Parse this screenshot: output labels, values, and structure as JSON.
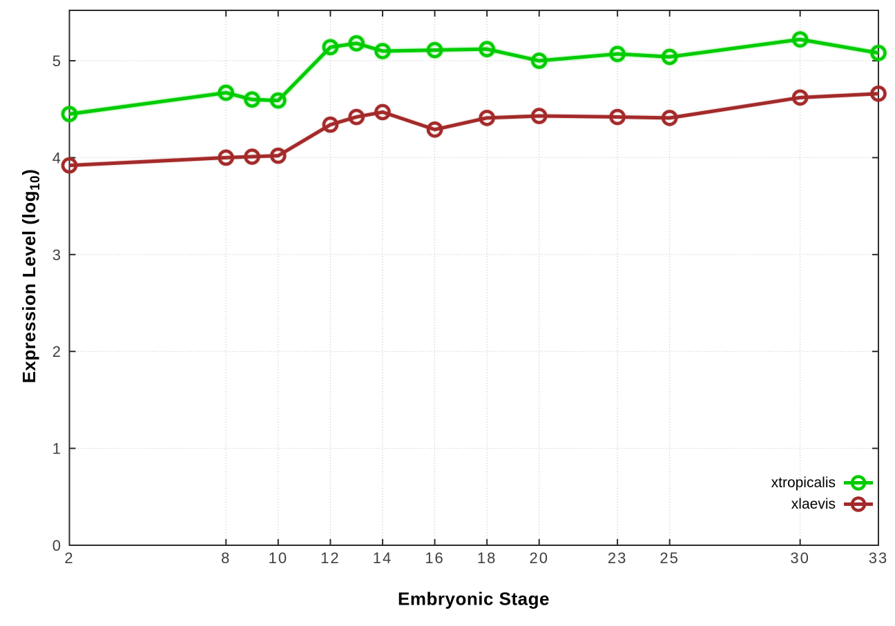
{
  "chart_data": {
    "type": "line",
    "title": "",
    "xlabel": "Embryonic Stage",
    "ylabel_prefix": "Expression Level (log",
    "ylabel_sub": "10",
    "ylabel_suffix": ")",
    "x": [
      2,
      8,
      9,
      10,
      12,
      13,
      14,
      16,
      18,
      20,
      23,
      25,
      30,
      33
    ],
    "series": [
      {
        "name": "xtropicalis",
        "color": "#00cc00",
        "values": [
          4.45,
          4.67,
          4.6,
          4.59,
          5.14,
          5.18,
          5.1,
          5.11,
          5.12,
          5.0,
          5.07,
          5.04,
          5.22,
          5.08
        ]
      },
      {
        "name": "xlaevis",
        "color": "#a42a2a",
        "values": [
          3.92,
          4.0,
          4.01,
          4.02,
          4.34,
          4.42,
          4.47,
          4.29,
          4.41,
          4.43,
          4.42,
          4.41,
          4.62,
          4.66
        ]
      }
    ],
    "x_ticks": [
      2,
      8,
      10,
      12,
      14,
      16,
      18,
      20,
      23,
      25,
      30,
      33
    ],
    "y_ticks": [
      0,
      1,
      2,
      3,
      4,
      5
    ],
    "xlim": [
      2,
      33
    ],
    "ylim": [
      0,
      5.52
    ],
    "grid": true,
    "legend_position": "bottom-right",
    "marker": "open-circle"
  }
}
